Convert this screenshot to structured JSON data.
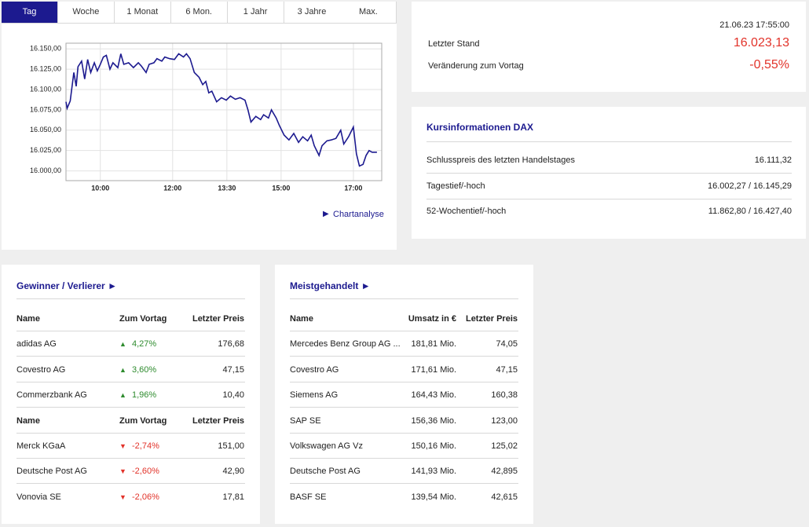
{
  "tabs": {
    "items": [
      "Tag",
      "Woche",
      "1 Monat",
      "6 Mon.",
      "1 Jahr",
      "3 Jahre",
      "Max."
    ],
    "active": 0
  },
  "chart_data": {
    "type": "line",
    "color": "#1c1a8f",
    "x": [
      "09:03",
      "09:05",
      "09:10",
      "09:16",
      "09:20",
      "09:23",
      "09:29",
      "09:34",
      "09:39",
      "09:44",
      "09:50",
      "09:55",
      "10:00",
      "10:05",
      "10:10",
      "10:16",
      "10:21",
      "10:29",
      "10:34",
      "10:39",
      "10:47",
      "10:55",
      "11:03",
      "11:08",
      "11:16",
      "11:21",
      "11:29",
      "11:34",
      "11:42",
      "11:47",
      "11:55",
      "12:03",
      "12:10",
      "12:18",
      "12:23",
      "12:29",
      "12:36",
      "12:44",
      "12:50",
      "12:55",
      "13:00",
      "13:05",
      "13:13",
      "13:21",
      "13:29",
      "13:36",
      "13:44",
      "13:52",
      "14:00",
      "14:05",
      "14:10",
      "14:18",
      "14:26",
      "14:31",
      "14:39",
      "14:44",
      "14:52",
      "14:57",
      "15:05",
      "15:13",
      "15:21",
      "15:29",
      "15:36",
      "15:44",
      "15:50",
      "15:55",
      "16:03",
      "16:08",
      "16:16",
      "16:23",
      "16:31",
      "16:39",
      "16:44",
      "16:52",
      "17:00",
      "17:05",
      "17:10",
      "17:16",
      "17:21",
      "17:26",
      "17:31",
      "17:39"
    ],
    "values": [
      16085,
      16077,
      16086,
      16121,
      16104,
      16128,
      16135,
      16113,
      16137,
      16121,
      16133,
      16123,
      16131,
      16140,
      16142,
      16125,
      16133,
      16127,
      16144,
      16131,
      16133,
      16127,
      16133,
      16129,
      16121,
      16131,
      16133,
      16138,
      16135,
      16140,
      16138,
      16137,
      16144,
      16140,
      16144,
      16138,
      16121,
      16115,
      16106,
      16110,
      16096,
      16098,
      16085,
      16090,
      16087,
      16092,
      16088,
      16090,
      16087,
      16075,
      16060,
      16067,
      16063,
      16069,
      16065,
      16075,
      16065,
      16056,
      16044,
      16038,
      16046,
      16035,
      16042,
      16037,
      16044,
      16031,
      16019,
      16031,
      16037,
      16038,
      16040,
      16050,
      16033,
      16042,
      16054,
      16021,
      16006,
      16008,
      16019,
      16025,
      16023,
      16023
    ],
    "xlim": [
      "09:03",
      "17:47"
    ],
    "xticks": [
      "10:00",
      "12:00",
      "13:30",
      "15:00",
      "17:00"
    ],
    "ylim": [
      15988,
      16157
    ],
    "yticks": [
      {
        "value": 16000,
        "label": "16.000,00"
      },
      {
        "value": 16025,
        "label": "16.025,00"
      },
      {
        "value": 16050,
        "label": "16.050,00"
      },
      {
        "value": 16075,
        "label": "16.075,00"
      },
      {
        "value": 16100,
        "label": "16.100,00"
      },
      {
        "value": 16125,
        "label": "16.125,00"
      },
      {
        "value": 16150,
        "label": "16.150,00"
      }
    ],
    "grid": true,
    "link": "Chartanalyse"
  },
  "quote": {
    "timestamp": "21.06.23 17:55:00",
    "last_label": "Letzter Stand",
    "last_value": "16.023,13",
    "change_label": "Veränderung zum Vortag",
    "change_value": "-0,55%"
  },
  "info": {
    "title": "Kursinformationen DAX",
    "rows": [
      {
        "label": "Schlusspreis des letzten Handelstages",
        "value": "16.111,32"
      },
      {
        "label": "Tagestief/-hoch",
        "value": "16.002,27 / 16.145,29"
      },
      {
        "label": "52-Wochentief/-hoch",
        "value": "11.862,80 / 16.427,40"
      }
    ]
  },
  "movers": {
    "title": "Gewinner / Verlierer",
    "groups": [
      {
        "direction": "up",
        "headers": [
          "Name",
          "Zum Vortag",
          "Letzter Preis"
        ],
        "rows": [
          [
            "adidas AG",
            "4,27%",
            "176,68"
          ],
          [
            "Covestro AG",
            "3,60%",
            "47,15"
          ],
          [
            "Commerzbank AG",
            "1,96%",
            "10,40"
          ]
        ]
      },
      {
        "direction": "down",
        "headers": [
          "Name",
          "Zum Vortag",
          "Letzter Preis"
        ],
        "rows": [
          [
            "Merck KGaA",
            "-2,74%",
            "151,00"
          ],
          [
            "Deutsche Post AG",
            "-2,60%",
            "42,90"
          ],
          [
            "Vonovia SE",
            "-2,06%",
            "17,81"
          ]
        ]
      }
    ]
  },
  "traded": {
    "title": "Meistgehandelt",
    "headers": [
      "Name",
      "Umsatz in €",
      "Letzter Preis"
    ],
    "rows": [
      [
        "Mercedes Benz Group AG ...",
        "181,81 Mio.",
        "74,05"
      ],
      [
        "Covestro AG",
        "171,61 Mio.",
        "47,15"
      ],
      [
        "Siemens AG",
        "164,43 Mio.",
        "160,38"
      ],
      [
        "SAP SE",
        "156,36 Mio.",
        "123,00"
      ],
      [
        "Volkswagen AG Vz",
        "150,16 Mio.",
        "125,02"
      ],
      [
        "Deutsche Post AG",
        "141,93 Mio.",
        "42,895"
      ],
      [
        "BASF SE",
        "139,54 Mio.",
        "42,615"
      ]
    ]
  }
}
